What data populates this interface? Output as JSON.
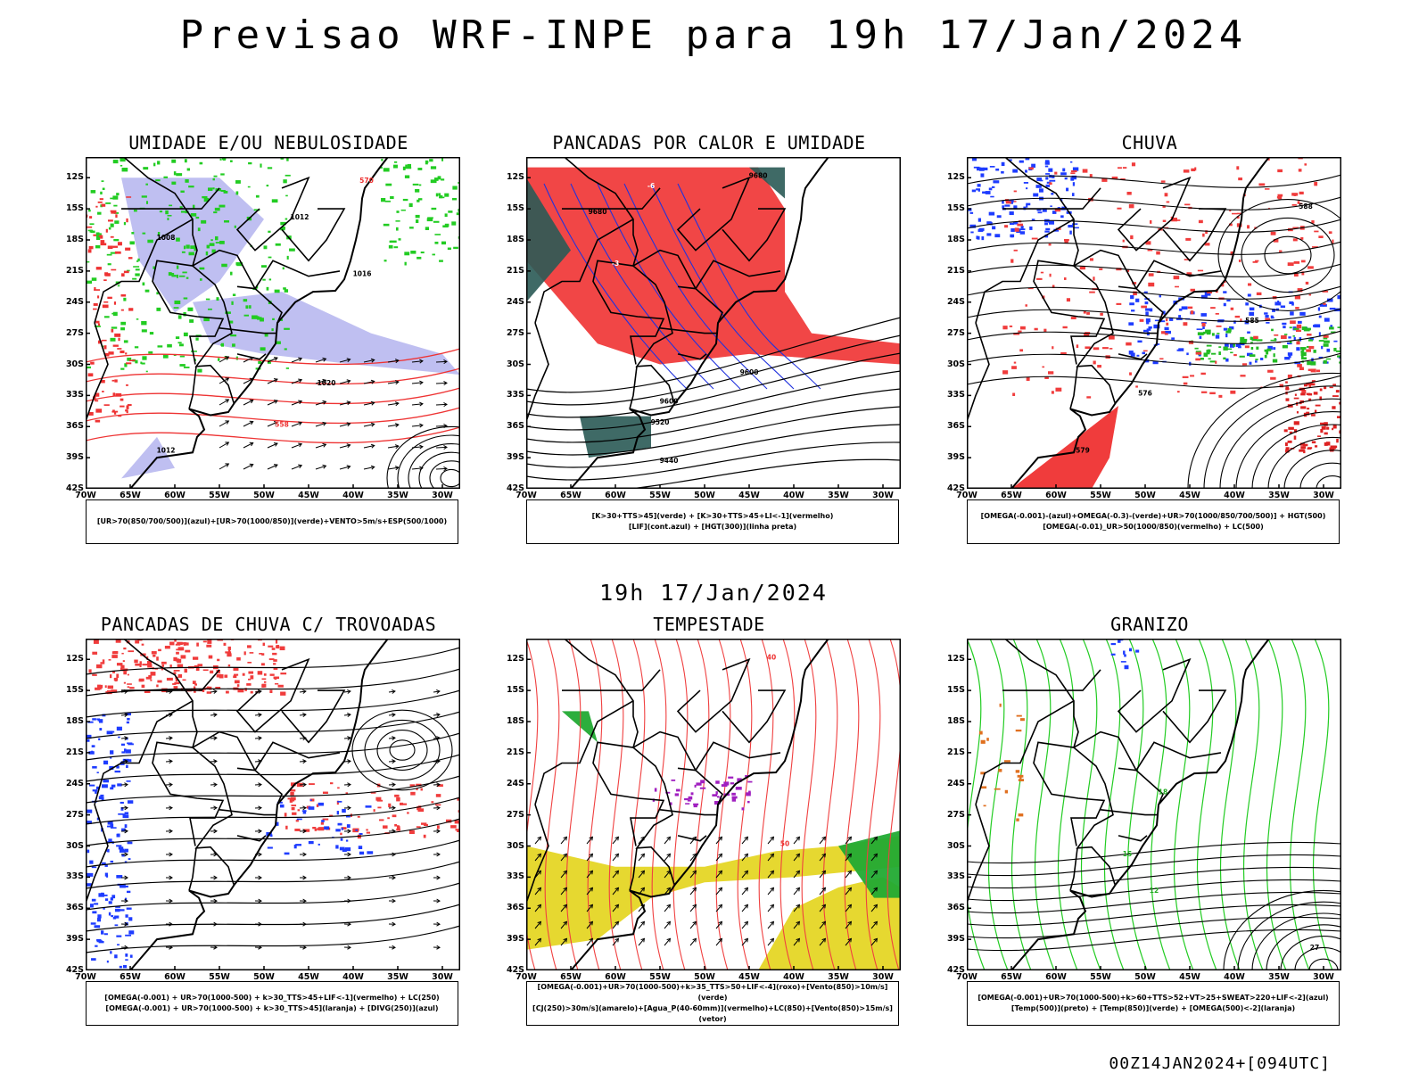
{
  "title": "Previsao WRF-INPE  para 19h 17/Jan/2024",
  "mid_time": "19h 17/Jan/2024",
  "footer": "00Z14JAN2024+[094UTC]",
  "lat_labels": [
    "12S",
    "15S",
    "18S",
    "21S",
    "24S",
    "27S",
    "30S",
    "33S",
    "36S",
    "39S",
    "42S"
  ],
  "lon_labels": [
    "70W",
    "65W",
    "60W",
    "55W",
    "50W",
    "45W",
    "40W",
    "35W",
    "30W"
  ],
  "panels": [
    {
      "title": "UMIDADE E/OU NEBULOSIDADE",
      "legend": [
        "[UR>70(850/700/500)](azul)+[UR>70(1000/850)](verde)+VENTO>5m/s+ESP(500/1000)"
      ],
      "contour_labels": [
        "1012",
        "1008",
        "1016",
        "1020",
        "576",
        "558",
        "570"
      ]
    },
    {
      "title": "PANCADAS POR CALOR E UMIDADE",
      "legend": [
        "[K>30+TTS>45](verde) + [K>30+TTS>45+LI<-1](vermelho)",
        "[LIF](cont.azul) + [HGT(300)](linha preta)"
      ],
      "contour_labels": [
        "9680",
        "9600",
        "9520",
        "9440",
        "-6",
        "-3"
      ]
    },
    {
      "title": "CHUVA",
      "legend": [
        "[OMEGA(-0.001)-(azul)+OMEGA(-0.3)-(verde)+UR>70(1000/850/700/500)] + HGT(500)",
        "[OMEGA(-0.01)_UR>50(1000/850)(vermelho) + LC(500)"
      ],
      "contour_labels": [
        "588",
        "585",
        "579",
        "576",
        "582"
      ]
    },
    {
      "title": "PANCADAS DE CHUVA C/ TROVOADAS",
      "legend": [
        "[OMEGA(-0.001) + UR>70(1000-500) + k>30_TTS>45+LIF<-1](vermelho) + LC(250)",
        "[OMEGA(-0.001) + UR>70(1000-500) + k>30_TTS>45](laranja) + [DIVG(250)](azul)"
      ],
      "contour_labels": []
    },
    {
      "title": "TEMPESTADE",
      "legend": [
        "[OMEGA(-0.001)+UR>70(1000-500)+k>35_TTS>50+LIF<-4](roxo)+[Vento(850)>10m/s](verde)",
        "[CJ(250)>30m/s](amarelo)+[Agua_P(40-60mm)](vermelho)+LC(850)+[Vento(850)>15m/s](vetor)"
      ],
      "contour_labels": [
        "40",
        "50"
      ]
    },
    {
      "title": "GRANIZO",
      "legend": [
        "[OMEGA(-0.001)+UR>70(1000-500)+k>60+TTS>52+VT>25+SWEAT>220+LIF<-2](azul)",
        "[Temp(500)](preto) + [Temp(850)](verde) + [OMEGA(500)<-2](laranja)"
      ],
      "contour_labels": [
        "18",
        "15",
        "12",
        "27"
      ]
    }
  ]
}
